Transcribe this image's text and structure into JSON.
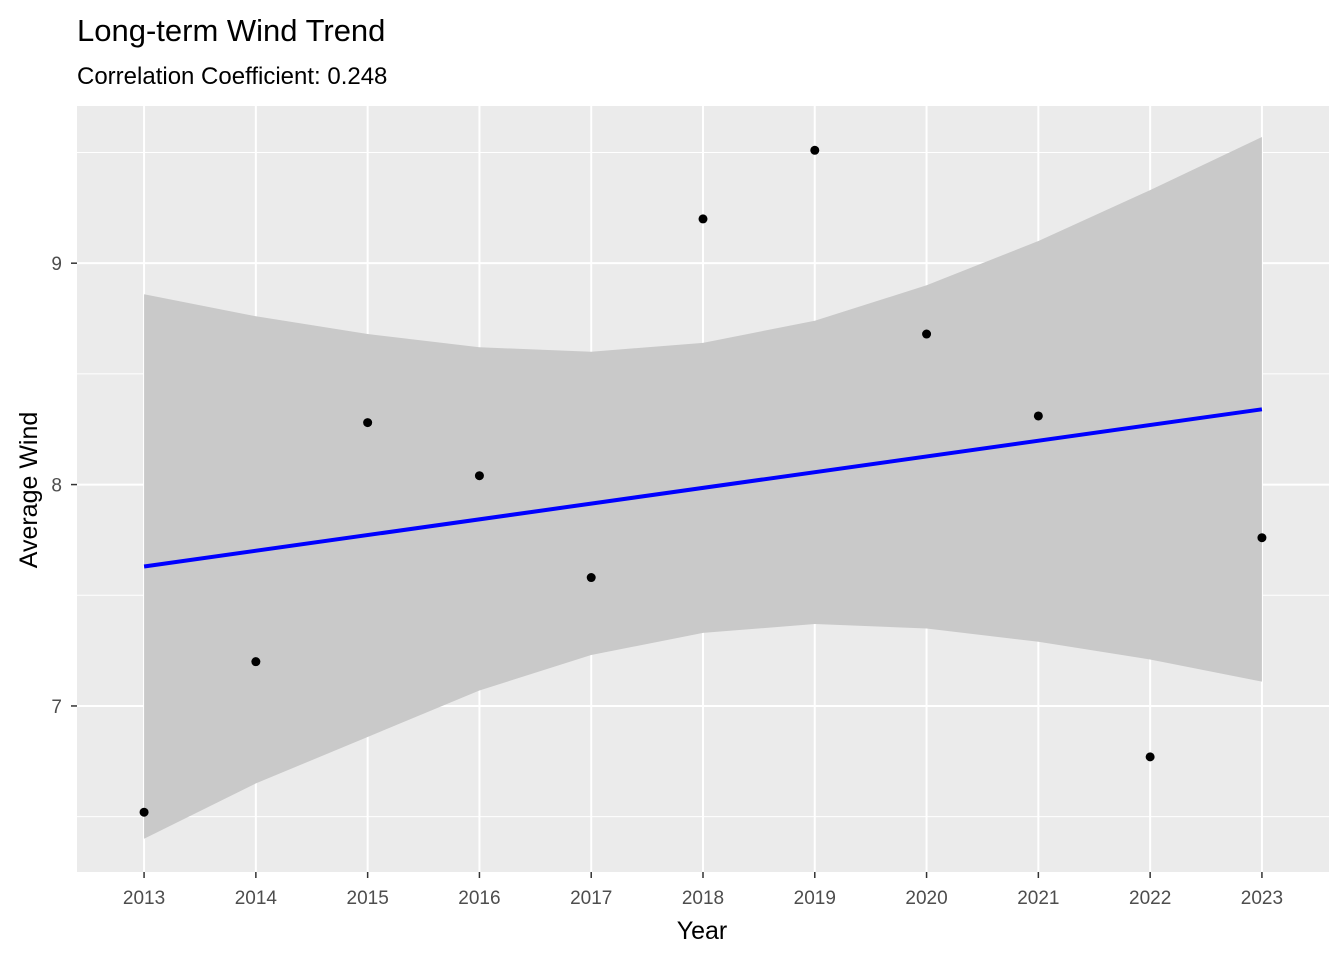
{
  "chart_data": {
    "type": "scatter",
    "title": "Long-term Wind Trend",
    "subtitle": "Correlation Coefficient: 0.248",
    "xlabel": "Year",
    "ylabel": "Average Wind",
    "x_ticks": [
      "2013",
      "2014",
      "2015",
      "2016",
      "2017",
      "2018",
      "2019",
      "2020",
      "2021",
      "2022",
      "2023"
    ],
    "y_ticks": [
      "7",
      "8",
      "9"
    ],
    "xlim": [
      2012.4,
      2023.6
    ],
    "ylim": [
      6.25,
      9.71
    ],
    "points": [
      {
        "x": 2013,
        "y": 6.52
      },
      {
        "x": 2014,
        "y": 7.2
      },
      {
        "x": 2015,
        "y": 8.28
      },
      {
        "x": 2016,
        "y": 8.04
      },
      {
        "x": 2017,
        "y": 7.58
      },
      {
        "x": 2018,
        "y": 9.2
      },
      {
        "x": 2019,
        "y": 9.51
      },
      {
        "x": 2020,
        "y": 8.68
      },
      {
        "x": 2021,
        "y": 8.31
      },
      {
        "x": 2022,
        "y": 6.77
      },
      {
        "x": 2023,
        "y": 7.76
      }
    ],
    "trend_line": {
      "x": [
        2013,
        2023
      ],
      "y": [
        7.63,
        8.34
      ]
    },
    "confidence_band": {
      "x": [
        2013,
        2014,
        2015,
        2016,
        2017,
        2018,
        2019,
        2020,
        2021,
        2022,
        2023
      ],
      "lower": [
        6.4,
        6.65,
        6.86,
        7.07,
        7.23,
        7.33,
        7.37,
        7.35,
        7.29,
        7.21,
        7.11
      ],
      "upper": [
        8.86,
        8.76,
        8.68,
        8.62,
        8.6,
        8.64,
        8.74,
        8.9,
        9.1,
        9.33,
        9.57
      ]
    },
    "grid": true,
    "colors": {
      "panel": "#ebebeb",
      "grid": "#ffffff",
      "band": "#c9c9c9",
      "line": "#0000ff",
      "point": "#000000"
    }
  }
}
